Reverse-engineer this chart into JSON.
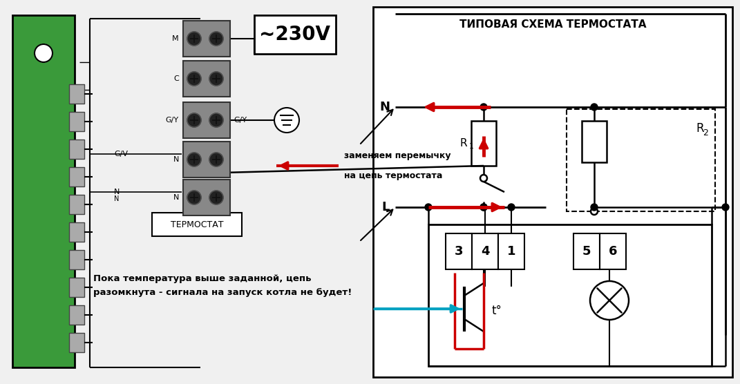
{
  "bg_color": "#f0f0f0",
  "title": "ТИПОВАЯ СХЕМА ТЕРМОСТАТА",
  "label_230v": "~230V",
  "label_thermostat": "ТЕРМОСТАТ",
  "label_N": "N",
  "label_L": "L",
  "label_R1": "R",
  "label_R1_sub": "1",
  "label_R2": "R",
  "label_R2_sub": "2",
  "label_t": "t°",
  "label_replace1": "заменяем перемычку",
  "label_replace2": "на цепь термостата",
  "label_note1": "Пока температура выше заданной, цепь",
  "label_note2": "разомкнута - сигнала на запуск котла не будет!",
  "black": "#000000",
  "red": "#cc0000",
  "green_pcb": "#3a9a3a",
  "gray_dark": "#666666",
  "gray_med": "#999999",
  "gray_light": "#bbbbbb",
  "cyan": "#00a0c0",
  "white": "#ffffff"
}
